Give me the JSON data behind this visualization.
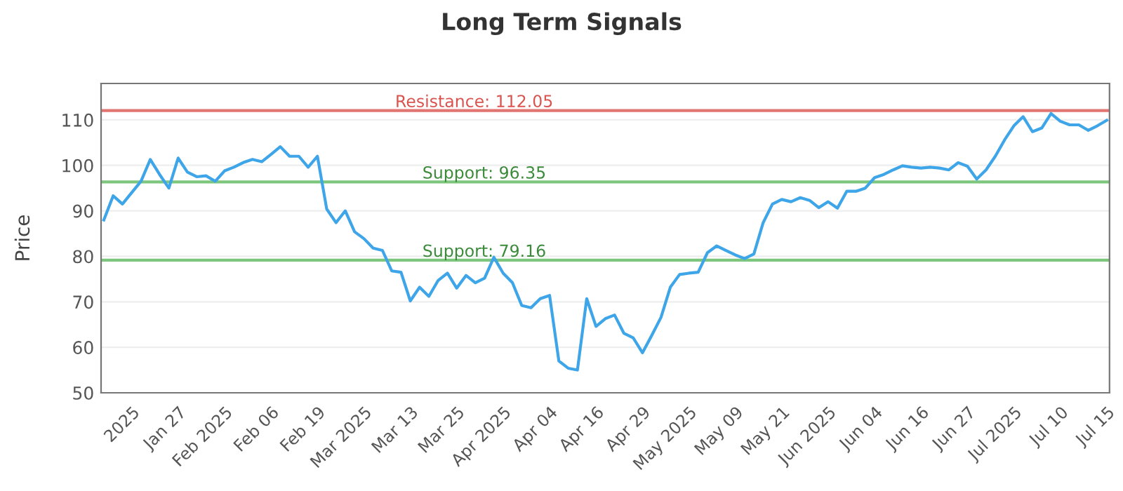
{
  "chart_data": {
    "type": "line",
    "title": "Long Term Signals",
    "ylabel": "Price",
    "categories": [
      null,
      null,
      null,
      "2025",
      null,
      null,
      null,
      null,
      "Jan 27",
      null,
      null,
      null,
      null,
      "Feb 2025",
      null,
      null,
      null,
      null,
      "Feb 06",
      null,
      null,
      null,
      null,
      "Feb 19",
      null,
      null,
      null,
      null,
      "Mar 2025",
      null,
      null,
      null,
      null,
      "Mar 13",
      null,
      null,
      null,
      null,
      "Mar 25",
      null,
      null,
      null,
      null,
      "Apr 2025",
      null,
      null,
      null,
      null,
      "Apr 04",
      null,
      null,
      null,
      null,
      "Apr 16",
      null,
      null,
      null,
      null,
      "Apr 29",
      null,
      null,
      null,
      null,
      "May 2025",
      null,
      null,
      null,
      null,
      "May 09",
      null,
      null,
      null,
      null,
      "May 21",
      null,
      null,
      null,
      null,
      "Jun 2025",
      null,
      null,
      null,
      null,
      "Jun 04",
      null,
      null,
      null,
      null,
      "Jun 16",
      null,
      null,
      null,
      null,
      "Jun 27",
      null,
      null,
      null,
      null,
      "Jul 2025",
      null,
      null,
      null,
      null,
      "Jul 10",
      null,
      null,
      null,
      null,
      "Jul 15"
    ],
    "series": [
      {
        "color": "#3da5e8",
        "values": [
          88,
          93.3,
          91.5,
          94,
          96.5,
          101.3,
          98,
          95,
          101.6,
          98.5,
          97.5,
          97.7,
          96.5,
          98.8,
          99.6,
          100.6,
          101.3,
          100.8,
          102.4,
          104.1,
          102,
          102,
          99.6,
          102,
          90.4,
          87.4,
          90,
          85.4,
          83.9,
          81.8,
          81.3,
          76.8,
          76.5,
          70.2,
          73.2,
          71.2,
          74.7,
          76.3,
          73,
          75.8,
          74.2,
          75.2,
          79.8,
          76.3,
          74.2,
          69.2,
          68.7,
          70.7,
          71.4,
          57,
          55.4,
          55,
          70.7,
          64.6,
          66.3,
          67.1,
          63.1,
          62.1,
          58.8,
          62.6,
          66.6,
          73.2,
          76,
          76.3,
          76.5,
          80.8,
          82.3,
          81.3,
          80.3,
          79.5,
          80.5,
          87.4,
          91.5,
          92.5,
          92,
          92.9,
          92.3,
          90.7,
          92,
          90.6,
          94.3,
          94.3,
          95,
          97.3,
          98,
          99,
          99.9,
          99.6,
          99.4,
          99.6,
          99.4,
          99,
          100.6,
          99.8,
          97,
          99,
          102,
          105.6,
          108.7,
          110.7,
          107.4,
          108.2,
          111.4,
          109.7,
          108.9,
          108.9,
          107.7,
          108.7,
          109.9
        ]
      }
    ],
    "ylim": [
      50,
      118
    ],
    "yticks": [
      50,
      60,
      70,
      80,
      90,
      100,
      110
    ],
    "grid": "y",
    "ref_lines": [
      {
        "axis": "y",
        "value": 112.05,
        "label": "Resistance: 112.05",
        "color": "#d9534f"
      },
      {
        "axis": "y",
        "value": 96.35,
        "label": "Support: 96.35",
        "color": "#5cb85c"
      },
      {
        "axis": "y",
        "value": 79.16,
        "label": "Support: 79.16",
        "color": "#5cb85c"
      }
    ]
  }
}
